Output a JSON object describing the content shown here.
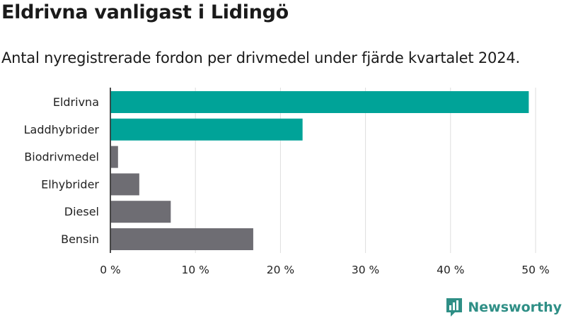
{
  "header": {
    "title": "Eldrivna vanligast i Lidingö",
    "subtitle": "Antal nyregistrerade fordon per drivmedel under fjärde kvartalet 2024."
  },
  "brand": {
    "name": "Newsworthy",
    "logo_icon": "bar-chart-flag-icon",
    "color": "#2f8f86"
  },
  "colors": {
    "highlight": "#00a398",
    "default": "#6e6d73",
    "grid": "#dddddd"
  },
  "chart_data": {
    "type": "bar",
    "orientation": "horizontal",
    "title": "Eldrivna vanligast i Lidingö",
    "subtitle": "Antal nyregistrerade fordon per drivmedel under fjärde kvartalet 2024.",
    "xlabel": "",
    "ylabel": "",
    "categories": [
      "Eldrivna",
      "Laddhybrider",
      "Biodrivmedel",
      "Elhybrider",
      "Diesel",
      "Bensin"
    ],
    "values": [
      49.2,
      22.6,
      0.9,
      3.4,
      7.1,
      16.8
    ],
    "highlighted": [
      true,
      true,
      false,
      false,
      false,
      false
    ],
    "xlim": [
      0,
      50
    ],
    "xticks": [
      0,
      10,
      20,
      30,
      40,
      50
    ],
    "xtick_labels": [
      "0 %",
      "10 %",
      "20 %",
      "30 %",
      "40 %",
      "50 %"
    ],
    "grid": true
  }
}
